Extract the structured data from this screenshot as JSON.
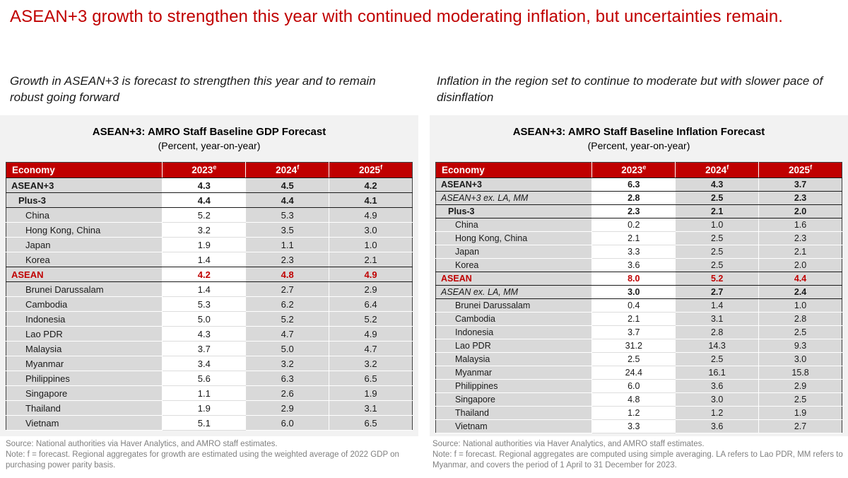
{
  "title": "ASEAN+3 growth to strengthen this year with continued moderating inflation, but uncertainties remain.",
  "colors": {
    "accent_red": "#C00000",
    "panel_background": "#F2F2F2",
    "cell_gray": "#D9D9D9",
    "footer_gray": "#808080"
  },
  "panels": [
    {
      "subtitle": "Growth in ASEAN+3 is forecast to strengthen this year and to remain robust going forward",
      "table_title": "ASEAN+3: AMRO Staff Baseline GDP Forecast",
      "table_subtitle": "(Percent, year-on-year)",
      "columns": {
        "economy": "Economy",
        "years": [
          {
            "label": "2023",
            "sup": "e"
          },
          {
            "label": "2024",
            "sup": "f"
          },
          {
            "label": "2025",
            "sup": "f"
          }
        ]
      },
      "rows": [
        {
          "economy": "ASEAN+3",
          "values": [
            "4.3",
            "4.5",
            "4.2"
          ],
          "style": "region",
          "indent": 0,
          "rule": true
        },
        {
          "economy": "Plus-3",
          "values": [
            "4.4",
            "4.4",
            "4.1"
          ],
          "style": "region",
          "indent": 1,
          "rule": true
        },
        {
          "economy": "China",
          "values": [
            "5.2",
            "5.3",
            "4.9"
          ],
          "style": "country",
          "indent": 2,
          "rule": false
        },
        {
          "economy": "Hong Kong, China",
          "values": [
            "3.2",
            "3.5",
            "3.0"
          ],
          "style": "country",
          "indent": 2,
          "rule": false
        },
        {
          "economy": "Japan",
          "values": [
            "1.9",
            "1.1",
            "1.0"
          ],
          "style": "country",
          "indent": 2,
          "rule": false
        },
        {
          "economy": "Korea",
          "values": [
            "1.4",
            "2.3",
            "2.1"
          ],
          "style": "country",
          "indent": 2,
          "rule": true
        },
        {
          "economy": "ASEAN",
          "values": [
            "4.2",
            "4.8",
            "4.9"
          ],
          "style": "asean",
          "indent": 0,
          "rule": true
        },
        {
          "economy": "Brunei Darussalam",
          "values": [
            "1.4",
            "2.7",
            "2.9"
          ],
          "style": "country",
          "indent": 2,
          "rule": false
        },
        {
          "economy": "Cambodia",
          "values": [
            "5.3",
            "6.2",
            "6.4"
          ],
          "style": "country",
          "indent": 2,
          "rule": false
        },
        {
          "economy": "Indonesia",
          "values": [
            "5.0",
            "5.2",
            "5.2"
          ],
          "style": "country",
          "indent": 2,
          "rule": false
        },
        {
          "economy": "Lao PDR",
          "values": [
            "4.3",
            "4.7",
            "4.9"
          ],
          "style": "country",
          "indent": 2,
          "rule": false
        },
        {
          "economy": "Malaysia",
          "values": [
            "3.7",
            "5.0",
            "4.7"
          ],
          "style": "country",
          "indent": 2,
          "rule": false
        },
        {
          "economy": "Myanmar",
          "values": [
            "3.4",
            "3.2",
            "3.2"
          ],
          "style": "country",
          "indent": 2,
          "rule": false
        },
        {
          "economy": "Philippines",
          "values": [
            "5.6",
            "6.3",
            "6.5"
          ],
          "style": "country",
          "indent": 2,
          "rule": false
        },
        {
          "economy": "Singapore",
          "values": [
            "1.1",
            "2.6",
            "1.9"
          ],
          "style": "country",
          "indent": 2,
          "rule": false
        },
        {
          "economy": "Thailand",
          "values": [
            "1.9",
            "2.9",
            "3.1"
          ],
          "style": "country",
          "indent": 2,
          "rule": false
        },
        {
          "economy": "Vietnam",
          "values": [
            "5.1",
            "6.0",
            "6.5"
          ],
          "style": "country",
          "indent": 2,
          "rule": false
        }
      ],
      "source": "Source: National authorities via Haver Analytics, and AMRO staff estimates.",
      "note": "Note: f = forecast. Regional aggregates for growth are estimated using the weighted average of 2022 GDP on purchasing power parity basis."
    },
    {
      "subtitle": "Inflation in the region set to continue to moderate but with slower pace of disinflation",
      "table_title": "ASEAN+3: AMRO Staff Baseline Inflation Forecast",
      "table_subtitle": "(Percent, year-on-year)",
      "columns": {
        "economy": "Economy",
        "years": [
          {
            "label": "2023",
            "sup": "e"
          },
          {
            "label": "2024",
            "sup": "f"
          },
          {
            "label": "2025",
            "sup": "f"
          }
        ]
      },
      "rows": [
        {
          "economy": "ASEAN+3",
          "values": [
            "6.3",
            "4.3",
            "3.7"
          ],
          "style": "region",
          "indent": 0,
          "rule": true
        },
        {
          "economy": "ASEAN+3 ex. LA, MM",
          "values": [
            "2.8",
            "2.5",
            "2.3"
          ],
          "style": "region-italic",
          "indent": 0,
          "rule": true
        },
        {
          "economy": "Plus-3",
          "values": [
            "2.3",
            "2.1",
            "2.0"
          ],
          "style": "region",
          "indent": 1,
          "rule": true
        },
        {
          "economy": "China",
          "values": [
            "0.2",
            "1.0",
            "1.6"
          ],
          "style": "country",
          "indent": 2,
          "rule": false
        },
        {
          "economy": "Hong Kong, China",
          "values": [
            "2.1",
            "2.5",
            "2.3"
          ],
          "style": "country",
          "indent": 2,
          "rule": false
        },
        {
          "economy": "Japan",
          "values": [
            "3.3",
            "2.5",
            "2.1"
          ],
          "style": "country",
          "indent": 2,
          "rule": false
        },
        {
          "economy": "Korea",
          "values": [
            "3.6",
            "2.5",
            "2.0"
          ],
          "style": "country",
          "indent": 2,
          "rule": true
        },
        {
          "economy": "ASEAN",
          "values": [
            "8.0",
            "5.2",
            "4.4"
          ],
          "style": "asean",
          "indent": 0,
          "rule": true
        },
        {
          "economy": "ASEAN ex. LA, MM",
          "values": [
            "3.0",
            "2.7",
            "2.4"
          ],
          "style": "region-italic",
          "indent": 0,
          "rule": true
        },
        {
          "economy": "Brunei Darussalam",
          "values": [
            "0.4",
            "1.4",
            "1.0"
          ],
          "style": "country",
          "indent": 2,
          "rule": false
        },
        {
          "economy": "Cambodia",
          "values": [
            "2.1",
            "3.1",
            "2.8"
          ],
          "style": "country",
          "indent": 2,
          "rule": false
        },
        {
          "economy": "Indonesia",
          "values": [
            "3.7",
            "2.8",
            "2.5"
          ],
          "style": "country",
          "indent": 2,
          "rule": false
        },
        {
          "economy": "Lao PDR",
          "values": [
            "31.2",
            "14.3",
            "9.3"
          ],
          "style": "country",
          "indent": 2,
          "rule": false
        },
        {
          "economy": "Malaysia",
          "values": [
            "2.5",
            "2.5",
            "3.0"
          ],
          "style": "country",
          "indent": 2,
          "rule": false
        },
        {
          "economy": "Myanmar",
          "values": [
            "24.4",
            "16.1",
            "15.8"
          ],
          "style": "country",
          "indent": 2,
          "rule": false
        },
        {
          "economy": "Philippines",
          "values": [
            "6.0",
            "3.6",
            "2.9"
          ],
          "style": "country",
          "indent": 2,
          "rule": false
        },
        {
          "economy": "Singapore",
          "values": [
            "4.8",
            "3.0",
            "2.5"
          ],
          "style": "country",
          "indent": 2,
          "rule": false
        },
        {
          "economy": "Thailand",
          "values": [
            "1.2",
            "1.2",
            "1.9"
          ],
          "style": "country",
          "indent": 2,
          "rule": false
        },
        {
          "economy": "Vietnam",
          "values": [
            "3.3",
            "3.6",
            "2.7"
          ],
          "style": "country",
          "indent": 2,
          "rule": false
        }
      ],
      "source": "Source: National authorities via Haver Analytics, and AMRO staff estimates.",
      "note": "Note: f = forecast. Regional aggregates are computed using simple averaging. LA refers to Lao PDR, MM refers to Myanmar, and covers the period of 1 April to 31 December for 2023."
    }
  ]
}
